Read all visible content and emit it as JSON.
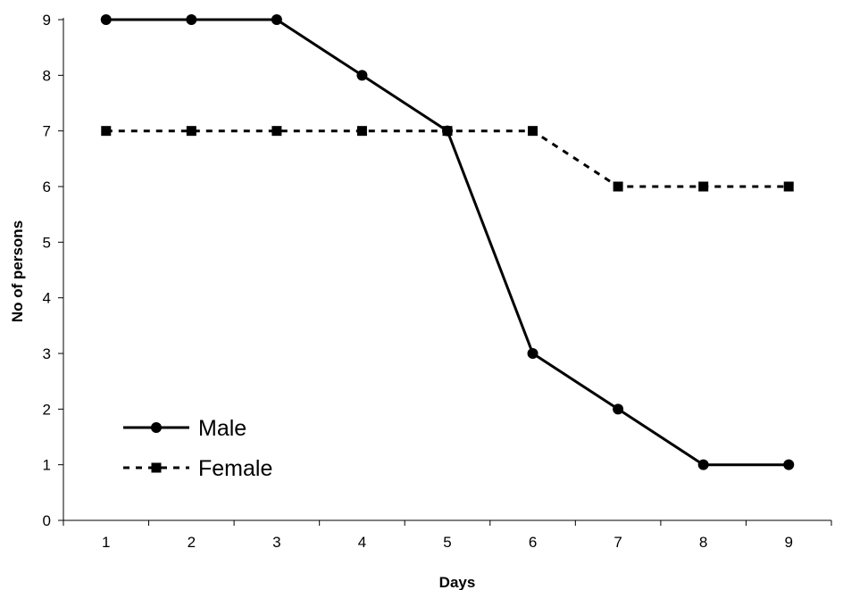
{
  "chart_data": {
    "type": "line",
    "title": "",
    "xlabel": "Days",
    "ylabel": "No of persons",
    "categories": [
      "1",
      "2",
      "3",
      "4",
      "5",
      "6",
      "7",
      "8",
      "9"
    ],
    "x": [
      1,
      2,
      3,
      4,
      5,
      6,
      7,
      8,
      9
    ],
    "ylim": [
      0,
      9
    ],
    "yticks": [
      "0",
      "1",
      "2",
      "3",
      "4",
      "5",
      "6",
      "7",
      "8",
      "9"
    ],
    "grid": false,
    "legend_position": "bottom-left",
    "series": [
      {
        "name": "Male",
        "values": [
          9,
          9,
          9,
          8,
          7,
          3,
          2,
          1,
          1
        ],
        "color": "#000000",
        "line_style": "solid",
        "marker": "circle"
      },
      {
        "name": "Female",
        "values": [
          7,
          7,
          7,
          7,
          7,
          7,
          6,
          6,
          6
        ],
        "color": "#000000",
        "line_style": "dashed",
        "marker": "square"
      }
    ]
  }
}
